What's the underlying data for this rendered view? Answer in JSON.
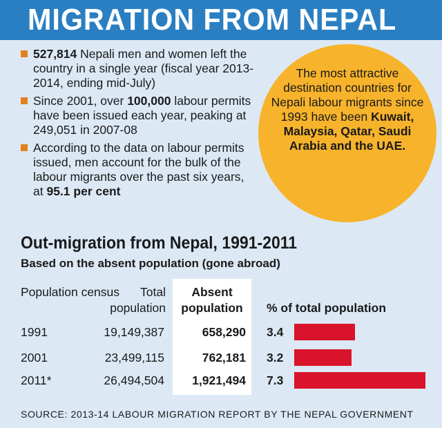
{
  "banner": {
    "title": "MIGRATION FROM NEPAL"
  },
  "bullets": [
    {
      "bold": "527,814",
      "text": " Nepali men and women left the country in a single year (fiscal year 2013-2014, ending mid-July)"
    },
    {
      "pre": "Since 2001, over ",
      "bold": "100,000",
      "post": " labour permits have been issued each year, peaking at 249,051 in 2007-08"
    },
    {
      "pre": "According to the data on labour permits issued, men account for the bulk of the labour migrants over the past six years, at ",
      "bold": "95.1 per cent"
    }
  ],
  "callout": {
    "text": "The most attractive destination countries for Nepali labour migrants since 1993 have been",
    "destinations": "Kuwait, Malaysia, Qatar, Saudi Arabia and the UAE."
  },
  "colors": {
    "banner": "#2a7fc2",
    "panel": "#dce9f5",
    "bullet": "#e4811f",
    "circle": "#f7b32b",
    "bar": "#d9132b"
  },
  "chart_data": {
    "type": "bar",
    "title": "Out-migration from Nepal, 1991-2011",
    "subtitle": "Based on the absent population (gone abroad)",
    "columns": [
      "Population census",
      "Total population",
      "Absent population",
      "% of total population"
    ],
    "categories": [
      "1991",
      "2001",
      "2011*"
    ],
    "total_population": [
      "19,149,387",
      "23,499,115",
      "26,494,504"
    ],
    "absent_population": [
      "658,290",
      "762,181",
      "1,921,494"
    ],
    "values": [
      3.4,
      3.2,
      7.3
    ],
    "value_labels": [
      "3.4",
      "3.2",
      "7.3"
    ]
  },
  "source": "SOURCE: 2013-14 LABOUR MIGRATION REPORT BY THE NEPAL GOVERNMENT"
}
